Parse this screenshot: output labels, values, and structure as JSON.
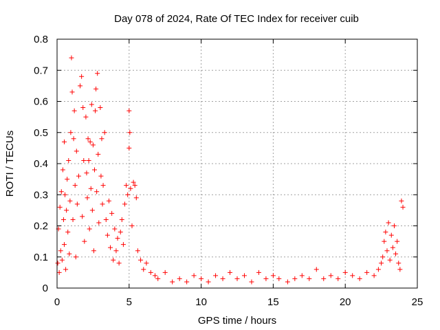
{
  "chart_data": {
    "type": "scatter",
    "title": "Day 078 of 2024, Rate Of TEC Index for receiver cuib",
    "xlabel": "GPS time / hours",
    "ylabel": "ROTI / TECUs",
    "xlim": [
      0,
      25
    ],
    "ylim": [
      0,
      0.8
    ],
    "xticks": [
      0,
      5,
      10,
      15,
      20,
      25
    ],
    "xtick_labels": [
      "0",
      "5",
      "10",
      "15",
      "20",
      "25"
    ],
    "yticks": [
      0,
      0.1,
      0.2,
      0.3,
      0.4,
      0.5,
      0.6,
      0.7,
      0.8
    ],
    "ytick_labels": [
      "0",
      "0.1",
      "0.2",
      "0.3",
      "0.4",
      "0.5",
      "0.6",
      "0.7",
      "0.8"
    ],
    "grid": true,
    "marker": "+",
    "color": "#ff0000",
    "series": [
      {
        "name": "ROTI",
        "points": [
          [
            0.05,
            0.08
          ],
          [
            0.1,
            0.19
          ],
          [
            0.15,
            0.05
          ],
          [
            0.2,
            0.26
          ],
          [
            0.25,
            0.12
          ],
          [
            0.3,
            0.31
          ],
          [
            0.35,
            0.09
          ],
          [
            0.4,
            0.38
          ],
          [
            0.45,
            0.22
          ],
          [
            0.5,
            0.47
          ],
          [
            0.5,
            0.14
          ],
          [
            0.55,
            0.3
          ],
          [
            0.6,
            0.06
          ],
          [
            0.65,
            0.25
          ],
          [
            0.7,
            0.35
          ],
          [
            0.75,
            0.18
          ],
          [
            0.8,
            0.41
          ],
          [
            0.85,
            0.11
          ],
          [
            0.9,
            0.28
          ],
          [
            0.95,
            0.5
          ],
          [
            1.0,
            0.74
          ],
          [
            1.05,
            0.63
          ],
          [
            1.1,
            0.22
          ],
          [
            1.15,
            0.48
          ],
          [
            1.2,
            0.57
          ],
          [
            1.25,
            0.33
          ],
          [
            1.3,
            0.1
          ],
          [
            1.35,
            0.44
          ],
          [
            1.4,
            0.27
          ],
          [
            1.5,
            0.36
          ],
          [
            1.6,
            0.65
          ],
          [
            1.7,
            0.68
          ],
          [
            1.75,
            0.23
          ],
          [
            1.8,
            0.58
          ],
          [
            1.85,
            0.41
          ],
          [
            1.9,
            0.15
          ],
          [
            2.0,
            0.55
          ],
          [
            2.05,
            0.37
          ],
          [
            2.1,
            0.29
          ],
          [
            2.15,
            0.48
          ],
          [
            2.2,
            0.41
          ],
          [
            2.25,
            0.19
          ],
          [
            2.3,
            0.47
          ],
          [
            2.35,
            0.32
          ],
          [
            2.4,
            0.59
          ],
          [
            2.45,
            0.25
          ],
          [
            2.5,
            0.46
          ],
          [
            2.55,
            0.12
          ],
          [
            2.6,
            0.38
          ],
          [
            2.65,
            0.57
          ],
          [
            2.7,
            0.64
          ],
          [
            2.75,
            0.31
          ],
          [
            2.8,
            0.69
          ],
          [
            2.85,
            0.43
          ],
          [
            2.9,
            0.21
          ],
          [
            3.0,
            0.58
          ],
          [
            3.05,
            0.36
          ],
          [
            3.1,
            0.48
          ],
          [
            3.15,
            0.27
          ],
          [
            3.2,
            0.33
          ],
          [
            3.3,
            0.5
          ],
          [
            3.4,
            0.22
          ],
          [
            3.5,
            0.17
          ],
          [
            3.6,
            0.28
          ],
          [
            3.7,
            0.13
          ],
          [
            3.8,
            0.24
          ],
          [
            3.9,
            0.09
          ],
          [
            4.0,
            0.19
          ],
          [
            4.1,
            0.12
          ],
          [
            4.2,
            0.16
          ],
          [
            4.3,
            0.08
          ],
          [
            4.4,
            0.18
          ],
          [
            4.5,
            0.22
          ],
          [
            4.6,
            0.14
          ],
          [
            4.7,
            0.27
          ],
          [
            4.8,
            0.33
          ],
          [
            4.9,
            0.3
          ],
          [
            5.0,
            0.57
          ],
          [
            5.0,
            0.45
          ],
          [
            5.05,
            0.5
          ],
          [
            5.1,
            0.32
          ],
          [
            5.2,
            0.2
          ],
          [
            5.3,
            0.34
          ],
          [
            5.4,
            0.33
          ],
          [
            5.5,
            0.29
          ],
          [
            5.6,
            0.12
          ],
          [
            5.8,
            0.09
          ],
          [
            6.0,
            0.06
          ],
          [
            6.2,
            0.08
          ],
          [
            6.5,
            0.05
          ],
          [
            6.8,
            0.04
          ],
          [
            7.0,
            0.03
          ],
          [
            7.5,
            0.05
          ],
          [
            8.0,
            0.02
          ],
          [
            8.5,
            0.03
          ],
          [
            9.0,
            0.02
          ],
          [
            9.5,
            0.04
          ],
          [
            10.0,
            0.03
          ],
          [
            10.5,
            0.02
          ],
          [
            11.0,
            0.04
          ],
          [
            11.5,
            0.03
          ],
          [
            12.0,
            0.05
          ],
          [
            12.5,
            0.03
          ],
          [
            13.0,
            0.04
          ],
          [
            13.5,
            0.02
          ],
          [
            14.0,
            0.05
          ],
          [
            14.5,
            0.03
          ],
          [
            15.0,
            0.04
          ],
          [
            15.4,
            0.03
          ],
          [
            16.0,
            0.02
          ],
          [
            16.5,
            0.03
          ],
          [
            17.0,
            0.04
          ],
          [
            17.5,
            0.03
          ],
          [
            18.0,
            0.06
          ],
          [
            18.5,
            0.03
          ],
          [
            19.0,
            0.04
          ],
          [
            19.5,
            0.03
          ],
          [
            20.0,
            0.05
          ],
          [
            20.5,
            0.04
          ],
          [
            21.0,
            0.03
          ],
          [
            21.5,
            0.05
          ],
          [
            22.0,
            0.04
          ],
          [
            22.3,
            0.06
          ],
          [
            22.5,
            0.08
          ],
          [
            22.6,
            0.1
          ],
          [
            22.7,
            0.15
          ],
          [
            22.8,
            0.18
          ],
          [
            22.9,
            0.12
          ],
          [
            23.0,
            0.21
          ],
          [
            23.1,
            0.09
          ],
          [
            23.2,
            0.17
          ],
          [
            23.3,
            0.13
          ],
          [
            23.4,
            0.2
          ],
          [
            23.5,
            0.11
          ],
          [
            23.6,
            0.15
          ],
          [
            23.7,
            0.08
          ],
          [
            23.8,
            0.06
          ],
          [
            23.9,
            0.28
          ],
          [
            24.0,
            0.26
          ]
        ]
      }
    ]
  }
}
